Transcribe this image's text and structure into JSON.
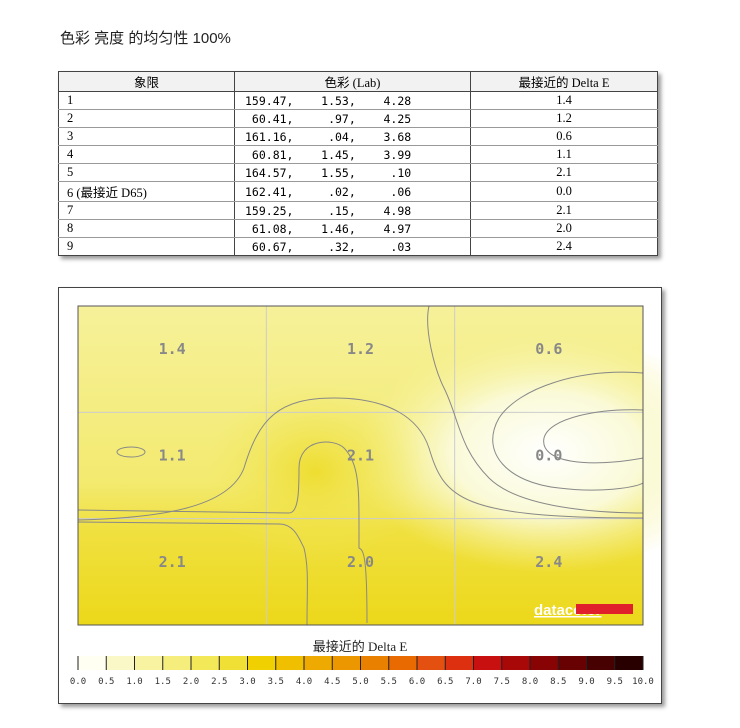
{
  "title": "色彩 亮度 的均匀性 100%",
  "table": {
    "headers": [
      "象限",
      "色彩 (Lab)",
      "最接近的 Delta E"
    ],
    "rows": [
      {
        "q": "1",
        "lab": "159.47,    1.53,    4.28",
        "de": "1.4"
      },
      {
        "q": "2",
        "lab": " 60.41,     .97,    4.25",
        "de": "1.2"
      },
      {
        "q": "3",
        "lab": "161.16,     .04,    3.68",
        "de": "0.6"
      },
      {
        "q": "4",
        "lab": " 60.81,    1.45,    3.99",
        "de": "1.1"
      },
      {
        "q": "5",
        "lab": "164.57,    1.55,     .10",
        "de": "2.1"
      },
      {
        "q": "6 (最接近 D65)",
        "lab": "162.41,     .02,     .06",
        "de": "0.0"
      },
      {
        "q": "7",
        "lab": "159.25,     .15,    4.98",
        "de": "2.1"
      },
      {
        "q": "8",
        "lab": " 61.08,    1.46,    4.97",
        "de": "2.0"
      },
      {
        "q": "9",
        "lab": " 60.67,     .32,     .03",
        "de": "2.4"
      }
    ]
  },
  "chart_data": {
    "type": "heatmap",
    "grid": [
      [
        1.4,
        1.2,
        0.6
      ],
      [
        1.1,
        2.1,
        0.0
      ],
      [
        2.1,
        2.0,
        2.4
      ]
    ],
    "colorbar_title": "最接近的 Delta E",
    "colorbar_ticks": [
      "0.0",
      "0.5",
      "1.0",
      "1.5",
      "2.0",
      "2.5",
      "3.0",
      "3.5",
      "4.0",
      "4.5",
      "5.0",
      "5.5",
      "6.0",
      "6.5",
      "7.0",
      "7.5",
      "8.0",
      "8.5",
      "9.0",
      "9.5",
      "10.0"
    ],
    "colorbar_range": [
      0,
      10
    ],
    "colors": [
      "#fffff2",
      "#fbf8c8",
      "#f8f3a0",
      "#f5ee7c",
      "#f2e858",
      "#f0e035",
      "#f0d000",
      "#efbf00",
      "#eeaa00",
      "#ec9600",
      "#ea8000",
      "#e86a00",
      "#e45010",
      "#dc3010",
      "#c81010",
      "#a80808",
      "#880404",
      "#680202",
      "#480101",
      "#280000"
    ]
  },
  "logo": "datacolor"
}
